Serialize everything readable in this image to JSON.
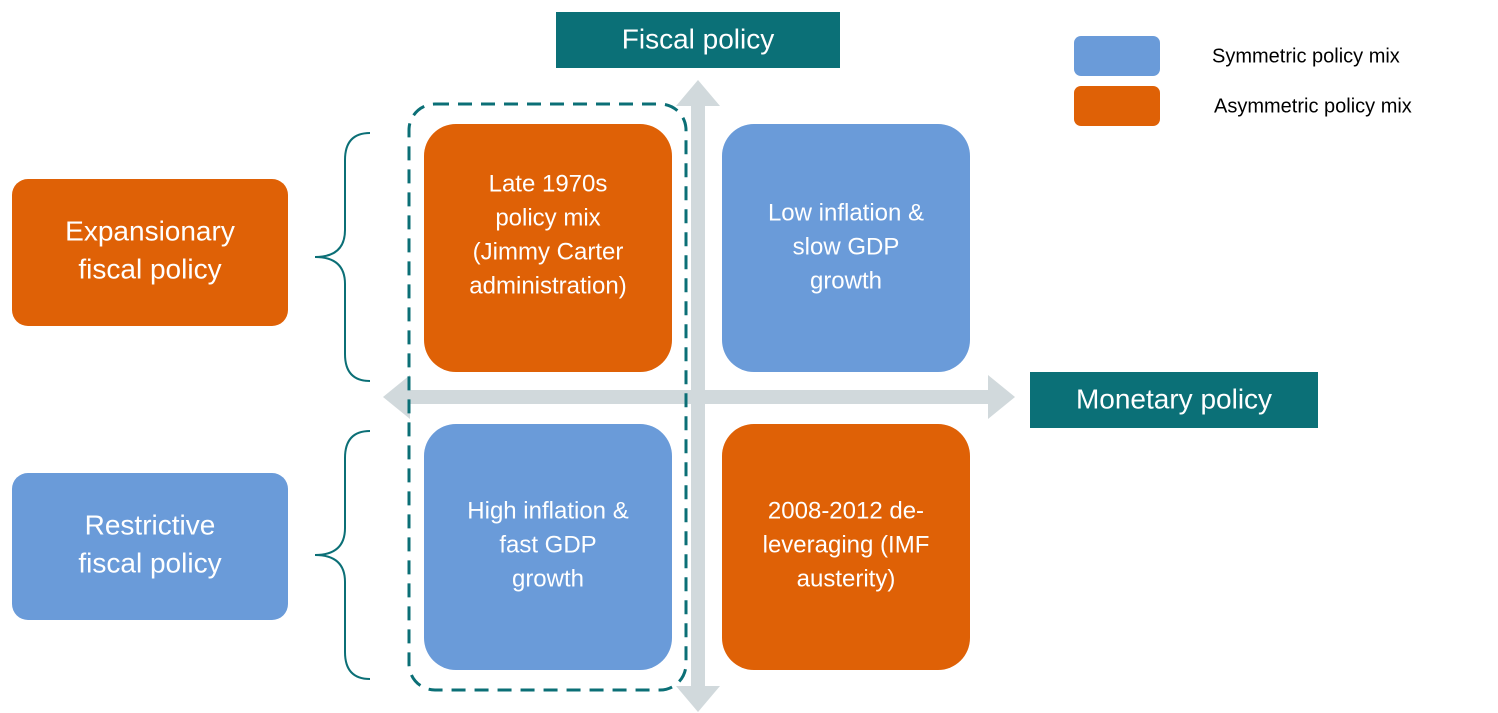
{
  "axes": {
    "vertical": "Fiscal policy",
    "horizontal": "Monetary policy"
  },
  "legend": [
    {
      "label": "Symmetric policy mix"
    },
    {
      "label": "Asymmetric policy mix"
    }
  ],
  "side_labels": [
    {
      "lines": [
        "Expansionary",
        "fiscal policy"
      ]
    },
    {
      "lines": [
        "Restrictive",
        "fiscal policy"
      ]
    }
  ],
  "quadrants": [
    {
      "lines": [
        "Late 1970s",
        "policy mix",
        "(Jimmy Carter",
        "administration)"
      ]
    },
    {
      "lines": [
        "Low inflation &",
        "slow GDP",
        "growth"
      ]
    },
    {
      "lines": [
        "High inflation &",
        "fast GDP",
        "growth"
      ]
    },
    {
      "lines": [
        "2008-2012 de-",
        "leveraging (IMF",
        "austerity)"
      ]
    }
  ]
}
